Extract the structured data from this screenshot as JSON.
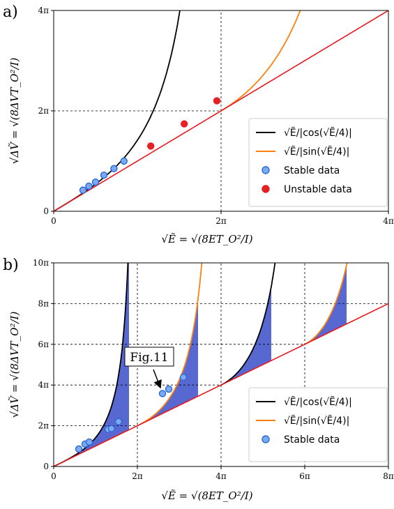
{
  "chart_data": [
    {
      "panel_label": "a)",
      "type": "line",
      "xlabel": "√Ẽ = √(8ET_O²/I)",
      "ylabel": "√ΔṼ = √(8ΔVT_O²/I)",
      "xlim": [
        0,
        4
      ],
      "ylim": [
        0,
        4
      ],
      "x_ticks": [
        "0",
        "2π",
        "4π"
      ],
      "y_ticks": [
        "0",
        "2π",
        "4π"
      ],
      "unit": "π",
      "grid": "dashed guides at 2π",
      "legend_position": "lower-right",
      "series": [
        {
          "name": "√Ẽ/|cos(√Ẽ/4)|",
          "kind": "line",
          "color": "#000000",
          "func": "cos"
        },
        {
          "name": "√Ẽ/|sin(√Ẽ/4)|",
          "kind": "line",
          "color": "#ff7f0e",
          "func": "sin"
        },
        {
          "name": "",
          "kind": "line",
          "color": "#e8191e",
          "func": "identity"
        },
        {
          "name": "Stable data",
          "kind": "scatter",
          "color": "#7aaaf0",
          "points": [
            [
              0.35,
              0.42
            ],
            [
              0.42,
              0.5
            ],
            [
              0.5,
              0.58
            ],
            [
              0.6,
              0.72
            ],
            [
              0.72,
              0.85
            ],
            [
              0.84,
              1.0
            ]
          ]
        },
        {
          "name": "Unstable data",
          "kind": "scatter",
          "color": "#e52124",
          "points": [
            [
              1.16,
              1.3
            ],
            [
              1.56,
              1.74
            ],
            [
              1.95,
              2.2
            ]
          ]
        }
      ]
    },
    {
      "panel_label": "b)",
      "type": "line",
      "xlabel": "√Ẽ = √(8ET_O²/I)",
      "ylabel": "√ΔṼ = √(8ΔVT_O²/I)",
      "xlim": [
        0,
        8
      ],
      "ylim": [
        0,
        10
      ],
      "x_ticks": [
        "0",
        "2π",
        "4π",
        "6π",
        "8π"
      ],
      "y_ticks": [
        "0",
        "2π",
        "4π",
        "6π",
        "8π",
        "10π"
      ],
      "unit": "π",
      "grid": "dashed guides at 2π, 4π, 6π, 8π",
      "legend_position": "lower-right",
      "annotation": "Fig.11",
      "series": [
        {
          "name": "√Ẽ/|cos(√Ẽ/4)|",
          "kind": "line",
          "color": "#000000",
          "func": "cos"
        },
        {
          "name": "√Ẽ/|sin(√Ẽ/4)|",
          "kind": "line",
          "color": "#ff7f0e",
          "func": "sin"
        },
        {
          "name": "",
          "kind": "line",
          "color": "#e8191e",
          "func": "identity"
        },
        {
          "name": "Stable data",
          "kind": "scatter",
          "color": "#7aaaf0",
          "points": [
            [
              0.6,
              0.86
            ],
            [
              0.75,
              1.1
            ],
            [
              0.85,
              1.2
            ],
            [
              1.3,
              1.82
            ],
            [
              1.38,
              1.86
            ],
            [
              1.55,
              2.2
            ],
            [
              2.6,
              3.58
            ],
            [
              2.75,
              3.8
            ],
            [
              3.1,
              4.38
            ]
          ]
        }
      ]
    }
  ]
}
